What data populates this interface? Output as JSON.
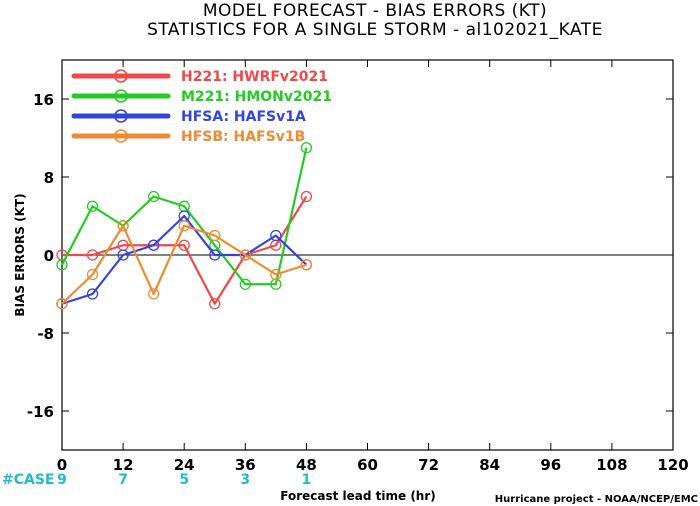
{
  "title_line1": "MODEL FORECAST - BIAS ERRORS (KT)",
  "title_line2": "STATISTICS FOR A SINGLE STORM - al102021_KATE",
  "credit": "Hurricane project - NOAA/NCEP/EMC",
  "case_label": "#CASE",
  "colors": {
    "case": "#22bbcc",
    "zero_line": "#000000",
    "axes": "#000000"
  },
  "chart_data": {
    "type": "line",
    "title": "MODEL FORECAST - BIAS ERRORS (KT)",
    "subtitle": "STATISTICS FOR A SINGLE STORM - al102021_KATE",
    "xlabel": "Forecast lead time (hr)",
    "ylabel": "BIAS ERRORS (KT)",
    "xlim": [
      0,
      120
    ],
    "ylim": [
      -20,
      20
    ],
    "xticks": [
      "0",
      "12",
      "24",
      "36",
      "48",
      "60",
      "72",
      "84",
      "96",
      "108",
      "120"
    ],
    "yticks": [
      "16",
      "8",
      "0",
      "-8",
      "-16"
    ],
    "grid": false,
    "legend_position": "top-left",
    "x": [
      0,
      6,
      12,
      18,
      24,
      30,
      36,
      42,
      48
    ],
    "series": [
      {
        "name": "H221: HWRFv2021",
        "color": "#f04848",
        "values": [
          0,
          0,
          1,
          1,
          1,
          -5,
          0,
          1,
          6
        ]
      },
      {
        "name": "M221: HMONv2021",
        "color": "#22cc22",
        "values": [
          -1,
          5,
          3,
          6,
          5,
          1,
          -3,
          -3,
          11
        ]
      },
      {
        "name": "HFSA: HAFSv1A",
        "color": "#3344dd",
        "values": [
          -5,
          -4,
          0,
          1,
          4,
          0,
          0,
          2,
          -1
        ]
      },
      {
        "name": "HFSB: HAFSv1B",
        "color": "#f08a30",
        "values": [
          -5,
          -2,
          3,
          -4,
          3,
          2,
          0,
          -2,
          -1
        ]
      }
    ],
    "cases": {
      "x": [
        0,
        12,
        24,
        36,
        48
      ],
      "labels": [
        "9",
        "7",
        "5",
        "3",
        "1"
      ]
    }
  }
}
